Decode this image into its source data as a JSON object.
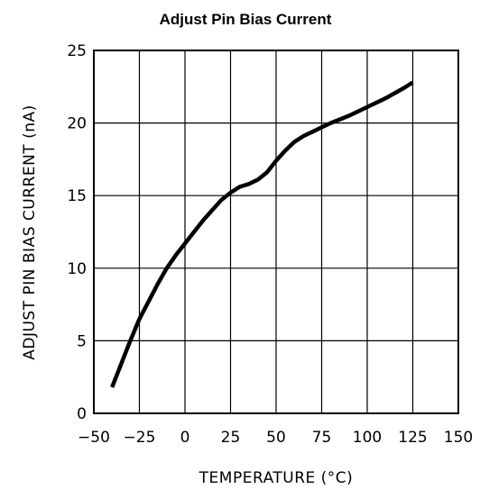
{
  "chart_data": {
    "type": "line",
    "title": "Adjust Pin Bias Current",
    "xlabel": "TEMPERATURE (°C)",
    "ylabel": "ADJUST PIN BIAS CURRENT (nA)",
    "xlim": [
      -50,
      150
    ],
    "ylim": [
      0,
      25
    ],
    "x_ticks": [
      -50,
      -25,
      0,
      25,
      50,
      75,
      100,
      125,
      150
    ],
    "y_ticks": [
      0,
      5,
      10,
      15,
      20,
      25
    ],
    "grid": true,
    "series": [
      {
        "x": [
          -40,
          -35,
          -30,
          -25,
          -20,
          -15,
          -10,
          -5,
          0,
          5,
          10,
          15,
          20,
          25,
          30,
          35,
          40,
          45,
          50,
          55,
          60,
          65,
          70,
          75,
          80,
          90,
          100,
          110,
          120,
          125
        ],
        "y": [
          1.8,
          3.4,
          5.0,
          6.5,
          7.7,
          8.9,
          10.0,
          10.9,
          11.7,
          12.5,
          13.3,
          14.0,
          14.7,
          15.2,
          15.6,
          15.8,
          16.1,
          16.6,
          17.4,
          18.1,
          18.7,
          19.1,
          19.4,
          19.7,
          20.0,
          20.5,
          21.1,
          21.7,
          22.4,
          22.8
        ]
      }
    ]
  }
}
